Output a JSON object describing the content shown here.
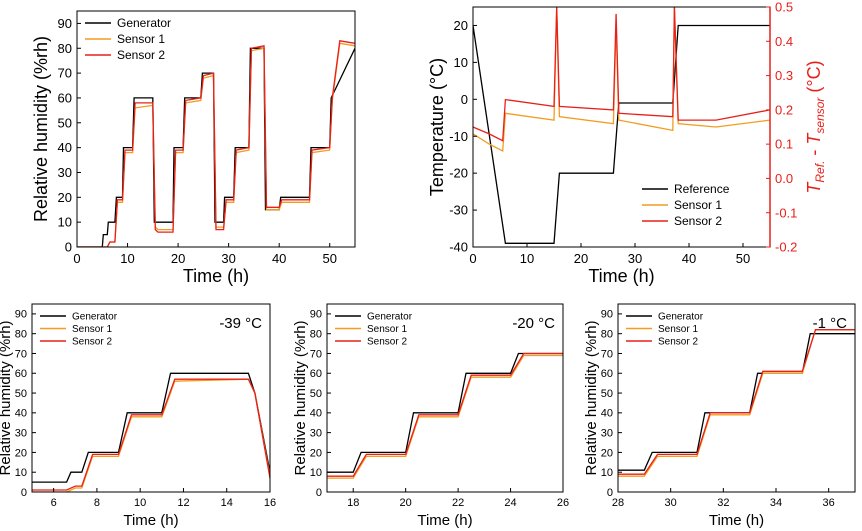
{
  "colors": {
    "generator": "#000000",
    "sensor1": "#f39c1f",
    "sensor2": "#e8201a",
    "right_axis": "#e8201a"
  },
  "chart_data": [
    {
      "id": "a",
      "type": "line",
      "title": "",
      "xlabel": "Time (h)",
      "ylabel": "Relative humidity (%rh)",
      "xlim": [
        0,
        55
      ],
      "ylim": [
        0,
        95
      ],
      "xticks": [
        0,
        10,
        20,
        30,
        40,
        50
      ],
      "yticks": [
        0,
        10,
        20,
        30,
        40,
        50,
        60,
        70,
        80,
        90
      ],
      "legend": [
        "Generator",
        "Sensor 1",
        "Sensor 2"
      ],
      "series": [
        {
          "name": "Generator",
          "x": [
            0,
            5,
            5.2,
            6,
            6.2,
            7.5,
            7.8,
            9,
            9.2,
            11,
            11.3,
            15,
            15.3,
            16,
            16.3,
            19,
            19.2,
            21,
            21.3,
            24.5,
            24.8,
            27,
            27.3,
            29,
            29.2,
            31,
            31.3,
            34,
            34.3,
            37,
            37.3,
            40,
            40.3,
            46,
            46.3,
            50,
            50.3,
            55
          ],
          "y": [
            0,
            0,
            5,
            5,
            10,
            10,
            20,
            20,
            40,
            40,
            60,
            60,
            10,
            10,
            10,
            10,
            40,
            40,
            60,
            60,
            70,
            70,
            10,
            10,
            20,
            20,
            40,
            40,
            80,
            80,
            15,
            15,
            20,
            20,
            40,
            40,
            60,
            80
          ]
        },
        {
          "name": "Sensor 1",
          "x": [
            0,
            6,
            6.5,
            7.5,
            8,
            9,
            9.5,
            11,
            11.5,
            15,
            15.5,
            16,
            16.5,
            19,
            19.5,
            21,
            21.5,
            24.5,
            25,
            27,
            27.5,
            29,
            29.5,
            31,
            31.5,
            34,
            34.5,
            37,
            37.5,
            40,
            40.5,
            46,
            46.5,
            50,
            50.5,
            52,
            55
          ],
          "y": [
            0,
            0,
            2,
            2,
            18,
            18,
            38,
            38,
            56,
            57,
            8,
            7,
            7,
            7,
            38,
            38,
            58,
            59,
            68,
            69,
            8,
            8,
            18,
            18,
            38,
            39,
            79,
            80,
            15,
            15,
            18,
            18,
            38,
            39,
            59,
            82,
            81
          ]
        },
        {
          "name": "Sensor 2",
          "x": [
            0,
            6,
            6.5,
            7.5,
            8,
            9,
            9.5,
            11,
            11.5,
            15,
            15.5,
            16,
            16.5,
            19,
            19.5,
            21,
            21.5,
            24.5,
            25,
            27,
            27.5,
            29,
            29.5,
            31,
            31.5,
            34,
            34.5,
            37,
            37.5,
            40,
            40.5,
            46,
            46.5,
            50,
            50.5,
            52,
            55
          ],
          "y": [
            0,
            0,
            2,
            2,
            19,
            19,
            39,
            39,
            58,
            58,
            7,
            6,
            6,
            6,
            39,
            39,
            59,
            60,
            69,
            70,
            7,
            7,
            19,
            19,
            39,
            40,
            80,
            81,
            16,
            16,
            19,
            19,
            39,
            40,
            60,
            83,
            82
          ]
        }
      ]
    },
    {
      "id": "b",
      "type": "line",
      "xlabel": "Time (h)",
      "ylabel": "Temperature (°C)",
      "ylabel_right_main": "T",
      "ylabel_right_sub1": "Ref.",
      "ylabel_right_dash": " - ",
      "ylabel_right_main2": "T",
      "ylabel_right_sub2": "sensor",
      "ylabel_right_unit": " (°C)",
      "xlim": [
        0,
        55
      ],
      "ylim": [
        -40,
        25
      ],
      "y2lim": [
        -0.2,
        0.5
      ],
      "xticks": [
        0,
        10,
        20,
        30,
        40,
        50
      ],
      "yticks": [
        -40,
        -30,
        -20,
        -10,
        0,
        10,
        20
      ],
      "y2ticks": [
        "-0.2",
        "-0.1",
        "0.0",
        "0.1",
        "0.2",
        "0.3",
        "0.4",
        "0.5"
      ],
      "legend": [
        "Reference",
        "Sensor 1",
        "Sensor 2"
      ],
      "series": [
        {
          "name": "Reference",
          "axis": "left",
          "x": [
            0,
            6,
            15,
            16,
            26,
            27,
            37,
            38,
            55
          ],
          "y": [
            20,
            -39,
            -39,
            -20,
            -20,
            -1,
            -1,
            20,
            20
          ]
        },
        {
          "name": "Sensor 1",
          "axis": "right",
          "x": [
            0,
            3,
            5.5,
            6,
            15,
            15.5,
            16,
            26,
            26.5,
            27,
            37,
            37.3,
            38,
            45,
            55
          ],
          "y": [
            0.13,
            0.1,
            0.08,
            0.19,
            0.17,
            0.5,
            0.18,
            0.16,
            0.45,
            0.17,
            0.14,
            0.5,
            0.16,
            0.15,
            0.17
          ]
        },
        {
          "name": "Sensor 2",
          "axis": "right",
          "x": [
            0,
            3,
            5.5,
            6,
            15,
            15.5,
            16,
            26,
            26.5,
            27,
            37,
            37.3,
            38,
            45,
            55
          ],
          "y": [
            0.15,
            0.13,
            0.11,
            0.23,
            0.21,
            0.5,
            0.21,
            0.2,
            0.48,
            0.19,
            0.18,
            0.5,
            0.17,
            0.17,
            0.2
          ]
        }
      ]
    },
    {
      "id": "c",
      "type": "line",
      "annotation": "-39 °C",
      "xlabel": "Time (h)",
      "ylabel": "Relative humidity (%rh)",
      "xlim": [
        5,
        16
      ],
      "ylim": [
        0,
        95
      ],
      "xticks": [
        6,
        8,
        10,
        12,
        14,
        16
      ],
      "yticks": [
        0,
        10,
        20,
        30,
        40,
        50,
        60,
        70,
        80,
        90
      ],
      "legend": [
        "Generator",
        "Sensor 1",
        "Sensor 2"
      ],
      "series": [
        {
          "name": "Generator",
          "x": [
            5,
            6.6,
            6.8,
            7.3,
            7.6,
            9,
            9.4,
            11,
            11.4,
            15,
            15.3,
            16
          ],
          "y": [
            5,
            5,
            10,
            10,
            20,
            20,
            40,
            40,
            60,
            60,
            50,
            10
          ]
        },
        {
          "name": "Sensor 1",
          "x": [
            5,
            6.6,
            7,
            7.3,
            7.8,
            9,
            9.6,
            11,
            11.6,
            15,
            15.3,
            16
          ],
          "y": [
            0,
            0,
            2,
            2,
            18,
            18,
            38,
            38,
            56,
            57,
            50,
            8
          ]
        },
        {
          "name": "Sensor 2",
          "x": [
            5,
            6.6,
            7,
            7.3,
            7.8,
            9,
            9.6,
            11,
            11.6,
            15,
            15.3,
            16
          ],
          "y": [
            1,
            1,
            3,
            3,
            19,
            19,
            39,
            39,
            57,
            57,
            50,
            7
          ]
        }
      ]
    },
    {
      "id": "d",
      "type": "line",
      "annotation": "-20 °C",
      "xlabel": "Time (h)",
      "ylabel": "Relative humidity (%rh)",
      "xlim": [
        17,
        26
      ],
      "ylim": [
        0,
        95
      ],
      "xticks": [
        18,
        20,
        22,
        24,
        26
      ],
      "yticks": [
        0,
        10,
        20,
        30,
        40,
        50,
        60,
        70,
        80,
        90
      ],
      "legend": [
        "Generator",
        "Sensor 1",
        "Sensor 2"
      ],
      "series": [
        {
          "name": "Generator",
          "x": [
            17,
            18,
            18.3,
            20,
            20.3,
            22,
            22.3,
            24,
            24.3,
            26
          ],
          "y": [
            10,
            10,
            20,
            20,
            40,
            40,
            60,
            60,
            70,
            70
          ]
        },
        {
          "name": "Sensor 1",
          "x": [
            17,
            18,
            18.5,
            20,
            20.5,
            22,
            22.5,
            24,
            24.5,
            26
          ],
          "y": [
            7,
            7,
            18,
            18,
            38,
            38,
            58,
            58,
            69,
            69
          ]
        },
        {
          "name": "Sensor 2",
          "x": [
            17,
            18,
            18.5,
            20,
            20.5,
            22,
            22.5,
            24,
            24.5,
            26
          ],
          "y": [
            8,
            8,
            19,
            19,
            39,
            39,
            59,
            59,
            70,
            70
          ]
        }
      ]
    },
    {
      "id": "e",
      "type": "line",
      "annotation": "-1 °C",
      "xlabel": "Time (h)",
      "ylabel": "Relative humidity (%rh)",
      "xlim": [
        28,
        37
      ],
      "ylim": [
        0,
        95
      ],
      "xticks": [
        28,
        30,
        32,
        34,
        36
      ],
      "yticks": [
        0,
        10,
        20,
        30,
        40,
        50,
        60,
        70,
        80,
        90
      ],
      "legend": [
        "Generator",
        "Sensor 1",
        "Sensor 2"
      ],
      "series": [
        {
          "name": "Generator",
          "x": [
            28,
            29,
            29.3,
            31,
            31.3,
            33,
            33.3,
            35,
            35.3,
            37
          ],
          "y": [
            11,
            11,
            20,
            20,
            40,
            40,
            60,
            60,
            80,
            80
          ]
        },
        {
          "name": "Sensor 1",
          "x": [
            28,
            29,
            29.5,
            31,
            31.5,
            33,
            33.5,
            35,
            35.5,
            37
          ],
          "y": [
            8,
            8,
            18,
            18,
            39,
            39,
            60,
            60,
            82,
            82
          ]
        },
        {
          "name": "Sensor 2",
          "x": [
            28,
            29,
            29.5,
            31,
            31.5,
            33,
            33.5,
            35,
            35.5,
            37
          ],
          "y": [
            9,
            9,
            19,
            19,
            40,
            40,
            61,
            61,
            82,
            82
          ]
        }
      ]
    }
  ]
}
